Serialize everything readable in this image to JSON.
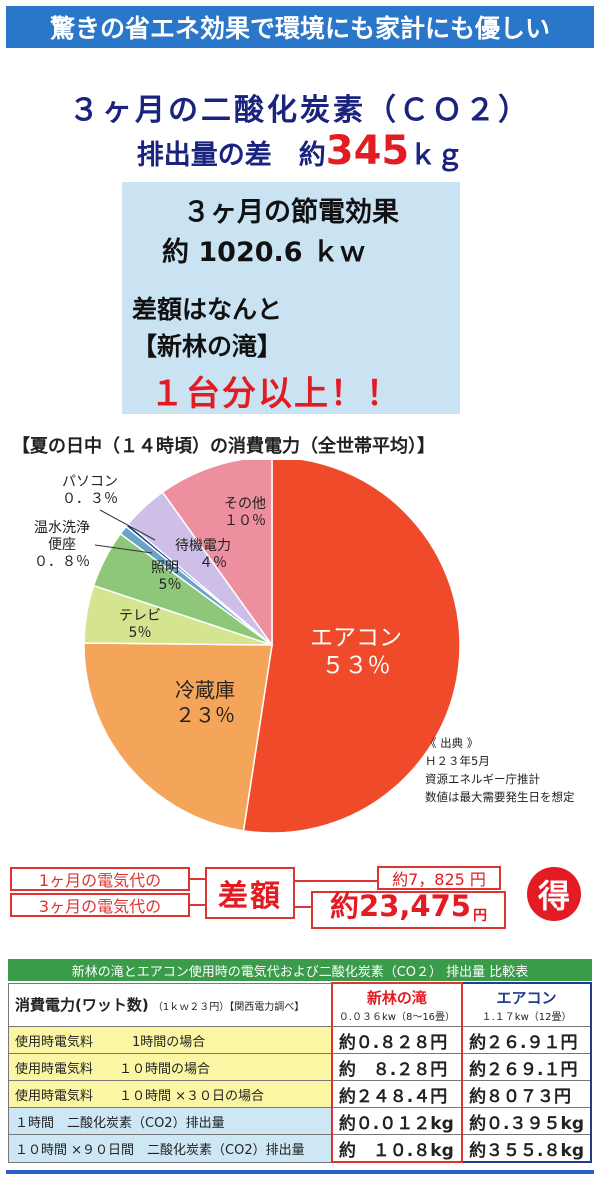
{
  "banner": "驚きの省エネ効果で環境にも家計にも優しい",
  "co2": {
    "title": "３ヶ月の二酸化炭素（ＣＯ２）",
    "diff_label": "排出量の差　約",
    "diff_value": "345",
    "diff_unit": "ｋｇ"
  },
  "savings": {
    "line1": "３ヶ月の節電効果",
    "line2": "約 1020.6 ｋｗ",
    "line3": "差額はなんと",
    "line4": "【新林の滝】",
    "line5": "１台分以上！！"
  },
  "chart_data": {
    "type": "pie",
    "title": "【夏の日中（１４時頃）の消費電力（全世帯平均）】",
    "slices": [
      {
        "label": "エアコン",
        "value": 53,
        "display": "５３％",
        "color": "#ef4a2a"
      },
      {
        "label": "冷蔵庫",
        "value": 23,
        "display": "２３％",
        "color": "#f4a55a"
      },
      {
        "label": "テレビ",
        "value": 5,
        "display": "5％",
        "color": "#d5e58f"
      },
      {
        "label": "照明",
        "value": 5,
        "display": "5％",
        "color": "#8fc77a"
      },
      {
        "label": "温水洗浄便座",
        "value": 0.8,
        "display": "０．８％",
        "color": "#6aa3c8"
      },
      {
        "label": "パソコン",
        "value": 0.3,
        "display": "０．３％",
        "color": "#1f3f8f"
      },
      {
        "label": "待機電力",
        "value": 4,
        "display": "４％",
        "color": "#cdbfe8"
      },
      {
        "label": "その他",
        "value": 10,
        "display": "１０％",
        "color": "#ee8fa0"
      }
    ],
    "source": [
      "《 出典 》",
      "Ｈ２３年5月",
      "資源エネルギー庁推計",
      "数値は最大需要発生日を想定"
    ]
  },
  "pie_labels": {
    "aircon": "エアコン",
    "aircon_pct": "５３％",
    "fridge": "冷蔵庫",
    "fridge_pct": "２３％",
    "tv": "テレビ",
    "tv_pct": "5％",
    "light": "照明",
    "light_pct": "5％",
    "standby": "待機電力",
    "standby_pct": "４％",
    "other": "その他",
    "other_pct": "１０％",
    "pc": "パソコン",
    "pc_pct": "０．３％",
    "toilet1": "温水洗浄",
    "toilet2": "便座",
    "toilet_pct": "０．８％"
  },
  "compare": {
    "month1_label": "1ヶ月の電気代の",
    "month3_label": "3ヶ月の電気代の",
    "diff_word": "差額",
    "amount1": "約7，825 円",
    "amount3": "約23,475",
    "amount3_unit": "円",
    "badge": "得"
  },
  "table": {
    "title": "新林の滝とエアコン使用時の電気代および二酸化炭素（CO２） 排出量 比較表",
    "header_main": "消費電力(ワット数)",
    "header_sub": "（1ｋｗ２３円）【関西電力調べ】",
    "col1_name": "新林の滝",
    "col1_sub": "０.０３６kw（8～16畳）",
    "col2_name": "エアコン",
    "col2_sub": "１.１７kw（12畳）",
    "rows": [
      {
        "label": "使用時電気料　　　1時間の場合",
        "v1": "約０.８２８円",
        "v2": "約２６.９１円"
      },
      {
        "label": "使用時電気料　　１０時間の場合",
        "v1": "約　８.２８円",
        "v2": "約２６９.１円"
      },
      {
        "label": "使用時電気料　　１０時間 ×３０日の場合",
        "v1": "約２４８.４円",
        "v2": "約８０７３円"
      },
      {
        "label": "１時間　二酸化炭素（CO2）排出量",
        "v1": "約０.０１２kg",
        "v2": "約０.３９５kg"
      },
      {
        "label": "１０時間 ×９０日間　二酸化炭素（CO2）排出量",
        "v1": "約　１０.８kg",
        "v2": "約３５５.８kg"
      }
    ]
  }
}
